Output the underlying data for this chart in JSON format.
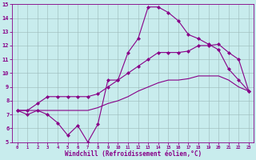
{
  "xlabel": "Windchill (Refroidissement éolien,°C)",
  "xlim": [
    -0.5,
    23.5
  ],
  "ylim": [
    5,
    15
  ],
  "xticks": [
    0,
    1,
    2,
    3,
    4,
    5,
    6,
    7,
    8,
    9,
    10,
    11,
    12,
    13,
    14,
    15,
    16,
    17,
    18,
    19,
    20,
    21,
    22,
    23
  ],
  "yticks": [
    5,
    6,
    7,
    8,
    9,
    10,
    11,
    12,
    13,
    14,
    15
  ],
  "bg_color": "#c8eced",
  "line_color": "#880088",
  "line1_x": [
    0,
    1,
    2,
    3,
    4,
    5,
    6,
    7,
    8,
    9,
    10,
    11,
    12,
    13,
    14,
    15,
    16,
    17,
    18,
    19,
    20,
    21,
    22,
    23
  ],
  "line1_y": [
    7.3,
    7.0,
    7.3,
    7.0,
    6.4,
    5.5,
    6.2,
    5.0,
    6.3,
    9.5,
    9.5,
    11.5,
    12.5,
    14.8,
    14.8,
    14.4,
    13.8,
    12.8,
    12.5,
    12.1,
    11.7,
    10.3,
    9.5,
    8.7
  ],
  "line2_x": [
    0,
    1,
    2,
    3,
    4,
    5,
    6,
    7,
    8,
    9,
    10,
    11,
    12,
    13,
    14,
    15,
    16,
    17,
    18,
    19,
    20,
    21,
    22,
    23
  ],
  "line2_y": [
    7.3,
    7.3,
    7.8,
    8.3,
    8.3,
    8.3,
    8.3,
    8.3,
    8.5,
    9.0,
    9.5,
    10.0,
    10.5,
    11.0,
    11.5,
    11.5,
    11.5,
    11.6,
    12.0,
    12.0,
    12.1,
    11.5,
    11.0,
    8.7
  ],
  "line3_x": [
    0,
    1,
    2,
    3,
    4,
    5,
    6,
    7,
    8,
    9,
    10,
    11,
    12,
    13,
    14,
    15,
    16,
    17,
    18,
    19,
    20,
    21,
    22,
    23
  ],
  "line3_y": [
    7.3,
    7.3,
    7.3,
    7.3,
    7.3,
    7.3,
    7.3,
    7.3,
    7.5,
    7.8,
    8.0,
    8.3,
    8.7,
    9.0,
    9.3,
    9.5,
    9.5,
    9.6,
    9.8,
    9.8,
    9.8,
    9.5,
    9.0,
    8.7
  ]
}
